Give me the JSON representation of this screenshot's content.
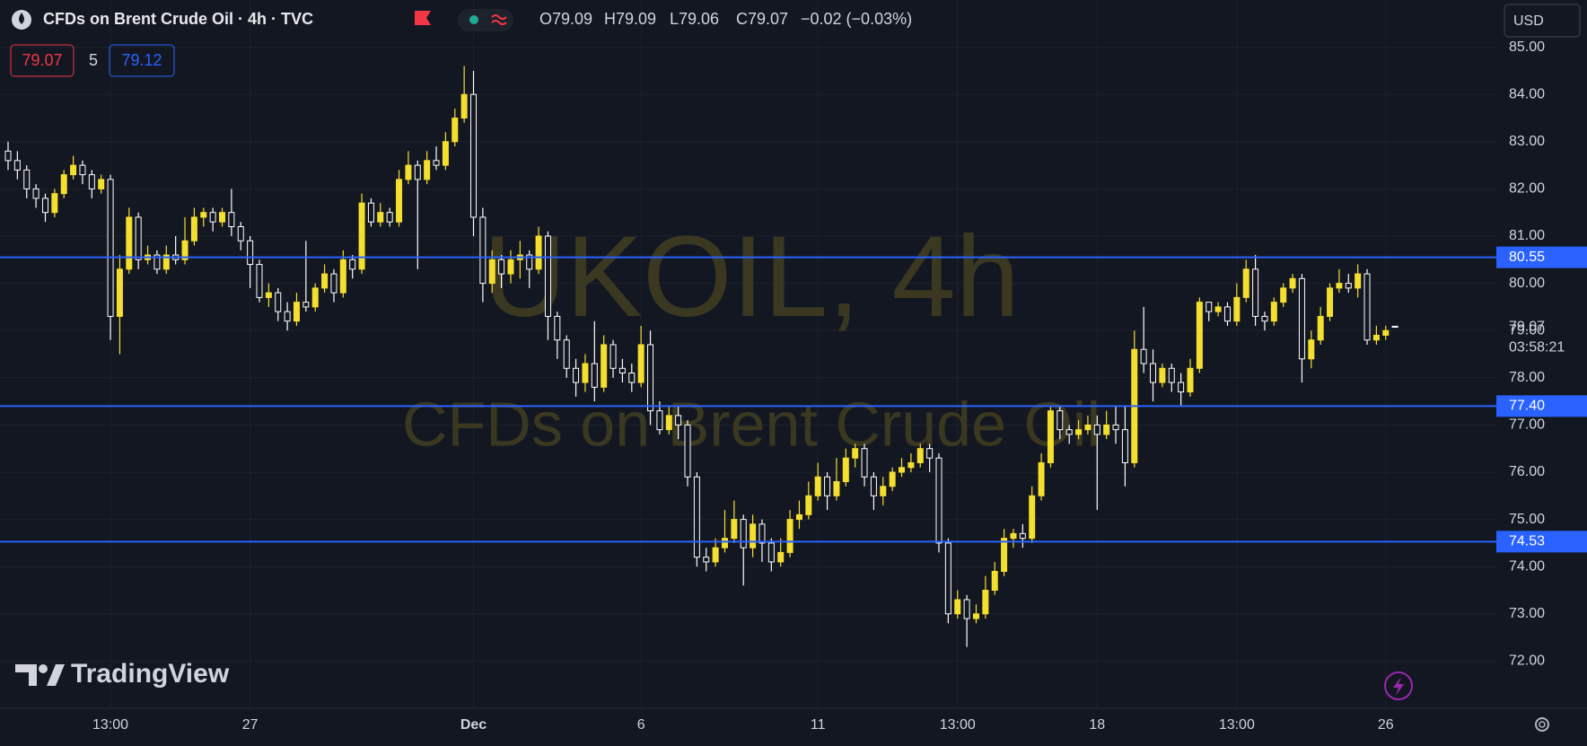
{
  "header": {
    "symbol": "CFDs on Brent Crude Oil · 4h · TVC",
    "open": "O79.09",
    "high": "H79.09",
    "low": "L79.06",
    "close": "C79.07",
    "change": "−0.02 (−0.03%)",
    "bid": 79.07,
    "spread": 5,
    "ask": 79.12,
    "currency": "USD"
  },
  "watermark": {
    "line1": "UKOIL, 4h",
    "line2": "CFDs on Brent Crude Oil"
  },
  "logo": "TradingView",
  "chart_data": {
    "type": "candlestick",
    "categories": [
      null,
      null,
      null,
      null,
      null,
      null,
      null,
      null,
      null,
      null,
      null,
      "13:00",
      null,
      null,
      null,
      null,
      null,
      null,
      null,
      null,
      null,
      null,
      null,
      null,
      null,
      null,
      "27",
      null,
      null,
      null,
      null,
      null,
      null,
      null,
      null,
      null,
      null,
      null,
      null,
      null,
      null,
      null,
      null,
      null,
      null,
      null,
      null,
      null,
      null,
      null,
      "Dec",
      null,
      null,
      null,
      null,
      null,
      null,
      null,
      null,
      null,
      null,
      null,
      null,
      null,
      null,
      null,
      null,
      null,
      "6",
      null,
      null,
      null,
      null,
      null,
      null,
      null,
      null,
      null,
      null,
      null,
      null,
      null,
      null,
      null,
      null,
      null,
      null,
      "11",
      null,
      null,
      null,
      null,
      null,
      null,
      null,
      null,
      null,
      null,
      null,
      null,
      null,
      null,
      "13:00",
      null,
      null,
      null,
      null,
      null,
      null,
      null,
      null,
      null,
      null,
      null,
      null,
      null,
      null,
      "18",
      null,
      null,
      null,
      null,
      null,
      null,
      null,
      null,
      null,
      null,
      null,
      null,
      null,
      null,
      "13:00",
      null,
      null,
      null,
      null,
      null,
      null,
      null,
      null,
      null,
      null,
      null,
      null,
      null,
      null,
      null,
      "26",
      null
    ],
    "open": [
      82.8,
      82.6,
      82.4,
      82.0,
      81.8,
      81.5,
      81.9,
      82.3,
      82.5,
      82.3,
      82.0,
      82.2,
      79.3,
      80.3,
      81.4,
      80.5,
      80.6,
      80.3,
      80.6,
      80.5,
      80.9,
      81.4,
      81.5,
      81.3,
      81.5,
      81.2,
      80.9,
      80.4,
      79.7,
      79.8,
      79.4,
      79.2,
      79.6,
      79.5,
      79.9,
      80.2,
      79.8,
      80.5,
      80.3,
      81.7,
      81.3,
      81.5,
      81.3,
      82.2,
      82.5,
      82.2,
      82.6,
      82.5,
      83.0,
      83.5,
      84.0,
      81.4,
      80.0,
      80.5,
      80.2,
      80.5,
      80.6,
      80.3,
      81.0,
      79.3,
      78.8,
      78.2,
      77.9,
      78.3,
      77.8,
      78.7,
      78.2,
      78.1,
      77.9,
      78.7,
      77.3,
      76.9,
      77.2,
      77.0,
      75.9,
      74.2,
      74.1,
      74.4,
      74.6,
      75.0,
      74.4,
      74.9,
      74.5,
      74.1,
      74.3,
      75.0,
      75.1,
      75.5,
      75.9,
      75.5,
      75.8,
      76.3,
      76.5,
      75.9,
      75.5,
      75.7,
      76.0,
      76.1,
      76.2,
      76.5,
      76.3,
      74.5,
      73.0,
      73.3,
      72.9,
      73.0,
      73.5,
      73.9,
      74.6,
      74.7,
      74.6,
      75.5,
      76.2,
      77.3,
      76.9,
      76.8,
      76.9,
      77.0,
      76.8,
      77.0,
      76.9,
      76.2,
      78.6,
      78.3,
      77.9,
      78.2,
      77.9,
      77.7,
      78.2,
      79.6,
      79.4,
      79.5,
      79.2,
      79.7,
      80.3,
      79.3,
      79.2,
      79.6,
      79.9,
      80.1,
      78.4,
      78.8,
      79.3,
      79.9,
      80.0,
      79.9,
      80.2,
      78.8,
      78.9,
      79.09
    ],
    "high": [
      83.0,
      82.8,
      82.5,
      82.1,
      81.9,
      82.0,
      82.4,
      82.7,
      82.6,
      82.4,
      82.3,
      82.3,
      80.6,
      81.6,
      81.5,
      80.8,
      80.7,
      80.8,
      81.0,
      81.4,
      81.6,
      81.6,
      81.6,
      81.6,
      82.0,
      81.3,
      81.0,
      80.5,
      80.0,
      79.9,
      79.6,
      79.8,
      80.9,
      80.0,
      80.4,
      80.3,
      80.7,
      80.6,
      81.9,
      81.8,
      81.7,
      81.6,
      82.4,
      82.8,
      82.6,
      82.8,
      82.9,
      83.2,
      83.7,
      84.6,
      84.5,
      81.6,
      80.7,
      80.6,
      80.7,
      80.9,
      80.7,
      81.2,
      81.1,
      79.4,
      78.9,
      78.4,
      78.5,
      79.2,
      78.9,
      78.8,
      78.4,
      78.3,
      79.1,
      79.0,
      77.5,
      77.4,
      77.4,
      77.1,
      76.0,
      74.4,
      74.6,
      75.2,
      75.4,
      75.1,
      75.1,
      75.0,
      74.6,
      74.6,
      75.2,
      75.4,
      75.8,
      76.2,
      76.0,
      76.3,
      76.5,
      76.6,
      76.6,
      76.0,
      75.9,
      76.1,
      76.3,
      76.4,
      76.6,
      76.6,
      76.4,
      74.6,
      73.5,
      73.4,
      73.2,
      73.8,
      74.1,
      74.8,
      74.8,
      74.9,
      75.7,
      76.4,
      77.4,
      77.4,
      77.0,
      77.1,
      77.2,
      77.2,
      77.3,
      77.4,
      77.4,
      79.0,
      79.5,
      78.6,
      78.3,
      78.3,
      78.1,
      78.4,
      79.7,
      79.6,
      79.6,
      79.6,
      80.0,
      80.5,
      80.6,
      79.4,
      79.7,
      80.0,
      80.2,
      80.2,
      79.0,
      79.5,
      80.0,
      80.3,
      80.2,
      80.4,
      80.3,
      79.1,
      79.1,
      79.09
    ],
    "low": [
      82.4,
      82.2,
      81.8,
      81.6,
      81.3,
      81.4,
      81.8,
      82.2,
      82.1,
      81.8,
      81.9,
      78.8,
      78.5,
      80.2,
      80.3,
      80.4,
      80.2,
      80.2,
      80.4,
      80.4,
      80.8,
      81.2,
      81.1,
      81.2,
      81.0,
      80.7,
      79.9,
      79.6,
      79.5,
      79.2,
      79.0,
      79.1,
      79.4,
      79.4,
      79.8,
      79.6,
      79.7,
      80.1,
      80.2,
      81.2,
      81.2,
      81.2,
      81.2,
      82.1,
      80.3,
      82.1,
      82.4,
      82.4,
      82.9,
      83.4,
      81.0,
      79.6,
      79.8,
      79.9,
      80.0,
      80.1,
      79.9,
      80.2,
      78.8,
      78.4,
      78.0,
      77.6,
      77.7,
      77.5,
      77.7,
      78.0,
      77.9,
      77.7,
      77.8,
      77.0,
      76.8,
      76.8,
      76.7,
      75.7,
      74.0,
      73.9,
      74.0,
      74.3,
      74.5,
      73.6,
      74.2,
      74.1,
      73.9,
      74.0,
      74.2,
      74.8,
      75.0,
      75.4,
      75.2,
      75.4,
      75.7,
      76.1,
      75.7,
      75.2,
      75.3,
      75.6,
      75.9,
      76.0,
      76.1,
      76.0,
      74.3,
      72.8,
      72.9,
      72.3,
      72.8,
      72.9,
      73.4,
      73.8,
      74.4,
      74.4,
      74.5,
      75.4,
      76.1,
      76.7,
      76.6,
      76.7,
      76.8,
      75.2,
      76.7,
      76.6,
      75.7,
      76.1,
      78.1,
      77.5,
      77.8,
      77.7,
      77.4,
      77.6,
      78.1,
      79.2,
      79.3,
      79.1,
      79.1,
      79.6,
      79.1,
      79.0,
      79.1,
      79.5,
      79.8,
      77.9,
      78.2,
      78.7,
      79.2,
      79.8,
      79.8,
      79.7,
      78.7,
      78.7,
      78.8,
      79.06
    ],
    "close": [
      82.6,
      82.4,
      82.0,
      81.8,
      81.5,
      81.9,
      82.3,
      82.5,
      82.3,
      82.0,
      82.2,
      79.3,
      80.3,
      81.4,
      80.5,
      80.6,
      80.3,
      80.6,
      80.5,
      80.9,
      81.4,
      81.5,
      81.3,
      81.5,
      81.2,
      80.9,
      80.4,
      79.7,
      79.8,
      79.4,
      79.2,
      79.6,
      79.5,
      79.9,
      80.2,
      79.8,
      80.5,
      80.3,
      81.7,
      81.3,
      81.5,
      81.3,
      82.2,
      82.5,
      82.2,
      82.6,
      82.5,
      83.0,
      83.5,
      84.0,
      81.4,
      80.0,
      80.5,
      80.2,
      80.5,
      80.6,
      80.3,
      81.0,
      79.3,
      78.8,
      78.2,
      77.9,
      78.3,
      77.8,
      78.7,
      78.2,
      78.1,
      77.9,
      78.7,
      77.3,
      76.9,
      77.2,
      77.0,
      75.9,
      74.2,
      74.1,
      74.4,
      74.6,
      75.0,
      74.4,
      74.9,
      74.5,
      74.1,
      74.3,
      75.0,
      75.1,
      75.5,
      75.9,
      75.5,
      75.8,
      76.3,
      76.5,
      75.9,
      75.5,
      75.7,
      76.0,
      76.1,
      76.2,
      76.5,
      76.3,
      74.5,
      73.0,
      73.3,
      72.9,
      73.0,
      73.5,
      73.9,
      74.6,
      74.7,
      74.6,
      75.5,
      76.2,
      77.3,
      76.9,
      76.8,
      76.9,
      77.0,
      76.8,
      77.0,
      76.9,
      76.2,
      78.6,
      78.3,
      77.9,
      78.2,
      77.9,
      77.7,
      78.2,
      79.6,
      79.4,
      79.5,
      79.2,
      79.7,
      80.3,
      79.3,
      79.2,
      79.6,
      79.9,
      80.1,
      78.4,
      78.8,
      79.3,
      79.9,
      80.0,
      79.9,
      80.2,
      78.8,
      78.9,
      79.0,
      79.07
    ],
    "ylim": [
      71,
      86
    ],
    "yticks": [
      {
        "value": 72,
        "label": "72.00"
      },
      {
        "value": 73,
        "label": "73.00"
      },
      {
        "value": 74,
        "label": "74.00"
      },
      {
        "value": 75,
        "label": "75.00"
      },
      {
        "value": 76,
        "label": "76.00"
      },
      {
        "value": 77,
        "label": "77.00"
      },
      {
        "value": 78,
        "label": "78.00"
      },
      {
        "value": 79,
        "label": "79.00"
      },
      {
        "value": 80,
        "label": "80.00"
      },
      {
        "value": 81,
        "label": "81.00"
      },
      {
        "value": 82,
        "label": "82.00"
      },
      {
        "value": 83,
        "label": "83.00"
      },
      {
        "value": 84,
        "label": "84.00"
      },
      {
        "value": 85,
        "label": "85.00"
      }
    ],
    "grid": true,
    "up_color": "#f5df2e",
    "down_color": "#ffffff",
    "hlines": [
      {
        "value": 80.55,
        "label": "80.55"
      },
      {
        "value": 77.4,
        "label": "77.40"
      },
      {
        "value": 74.53,
        "label": "74.53"
      }
    ],
    "hline_color": "#2962ff",
    "last_price": 79.07,
    "countdown": "03:58:21"
  }
}
